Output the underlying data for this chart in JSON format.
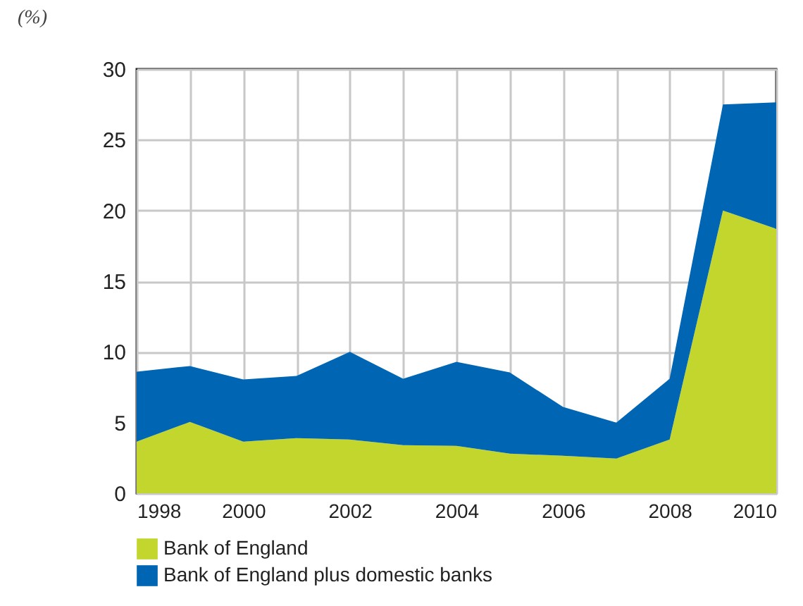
{
  "chart_data": {
    "type": "area",
    "stacked": true,
    "ylabel": "(%)",
    "x": [
      1998,
      1999,
      2000,
      2001,
      2002,
      2003,
      2004,
      2005,
      2006,
      2007,
      2008,
      2009,
      2010
    ],
    "series": [
      {
        "name": "Bank of England",
        "color": "#c2d62e",
        "values": [
          3.65,
          5.05,
          3.65,
          3.9,
          3.8,
          3.4,
          3.35,
          2.8,
          2.65,
          2.45,
          3.8,
          20.0,
          18.7
        ]
      },
      {
        "name": "Bank of England plus domestic banks",
        "color": "#0066b3",
        "values": [
          4.95,
          3.95,
          4.4,
          4.4,
          6.2,
          4.7,
          5.95,
          5.75,
          3.45,
          2.55,
          4.3,
          7.5,
          8.95
        ]
      }
    ],
    "xlim": [
      1998,
      2010
    ],
    "xticks": [
      1998,
      {
        "value": 1999,
        "label": null
      },
      2000,
      {
        "value": 2001,
        "label": null
      },
      2002,
      {
        "value": 2003,
        "label": null
      },
      2004,
      {
        "value": 2005,
        "label": null
      },
      2006,
      {
        "value": 2007,
        "label": null
      },
      2008,
      {
        "value": 2009,
        "label": null
      },
      2010
    ],
    "ylim": [
      0,
      30
    ],
    "yticks": [
      0,
      5,
      10,
      15,
      20,
      25,
      30
    ],
    "grid": true,
    "legend": "bottom left"
  }
}
